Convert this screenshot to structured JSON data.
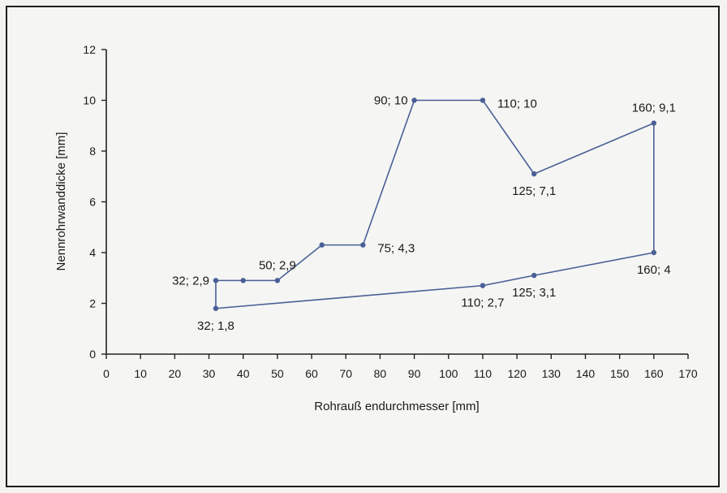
{
  "chart_data": {
    "type": "line",
    "xlabel": "Rohrauß endurchmesser [mm]",
    "ylabel": "Nennrohrwanddicke [mm]",
    "xlim": [
      0,
      170
    ],
    "ylim": [
      0,
      12
    ],
    "x_ticks": [
      0,
      10,
      20,
      30,
      40,
      50,
      60,
      70,
      80,
      90,
      100,
      110,
      120,
      130,
      140,
      150,
      160,
      170
    ],
    "y_ticks": [
      0,
      2,
      4,
      6,
      8,
      10,
      12
    ],
    "grid": false,
    "legend": "none",
    "line_color": "#4a5f96",
    "series": [
      {
        "points": [
          {
            "x": 32,
            "y": 1.8
          },
          {
            "x": 32,
            "y": 2.9
          },
          {
            "x": 40,
            "y": 2.9
          },
          {
            "x": 50,
            "y": 2.9
          },
          {
            "x": 63,
            "y": 4.3
          },
          {
            "x": 75,
            "y": 4.3
          },
          {
            "x": 90,
            "y": 10
          },
          {
            "x": 110,
            "y": 10
          },
          {
            "x": 125,
            "y": 7.1
          },
          {
            "x": 160,
            "y": 9.1
          },
          {
            "x": 160,
            "y": 4
          },
          {
            "x": 125,
            "y": 3.1
          },
          {
            "x": 110,
            "y": 2.7
          },
          {
            "x": 32,
            "y": 1.8
          }
        ]
      }
    ],
    "annotations": [
      {
        "text": "32; 2,9",
        "x": 32,
        "y": 2.9,
        "pos": "left"
      },
      {
        "text": "50; 2,9",
        "x": 50,
        "y": 2.9,
        "pos": "above"
      },
      {
        "text": "75; 4,3",
        "x": 75,
        "y": 4.3,
        "pos": "right"
      },
      {
        "text": "90; 10",
        "x": 90,
        "y": 10,
        "pos": "left"
      },
      {
        "text": "110; 10",
        "x": 110,
        "y": 10,
        "pos": "right"
      },
      {
        "text": "125; 7,1",
        "x": 125,
        "y": 7.1,
        "pos": "below"
      },
      {
        "text": "160; 9,1",
        "x": 160,
        "y": 9.1,
        "pos": "above"
      },
      {
        "text": "160; 4",
        "x": 160,
        "y": 4,
        "pos": "below"
      },
      {
        "text": "125; 3,1",
        "x": 125,
        "y": 3.1,
        "pos": "below"
      },
      {
        "text": "110; 2,7",
        "x": 110,
        "y": 2.7,
        "pos": "below"
      },
      {
        "text": "32; 1,8",
        "x": 32,
        "y": 1.8,
        "pos": "below"
      }
    ]
  }
}
